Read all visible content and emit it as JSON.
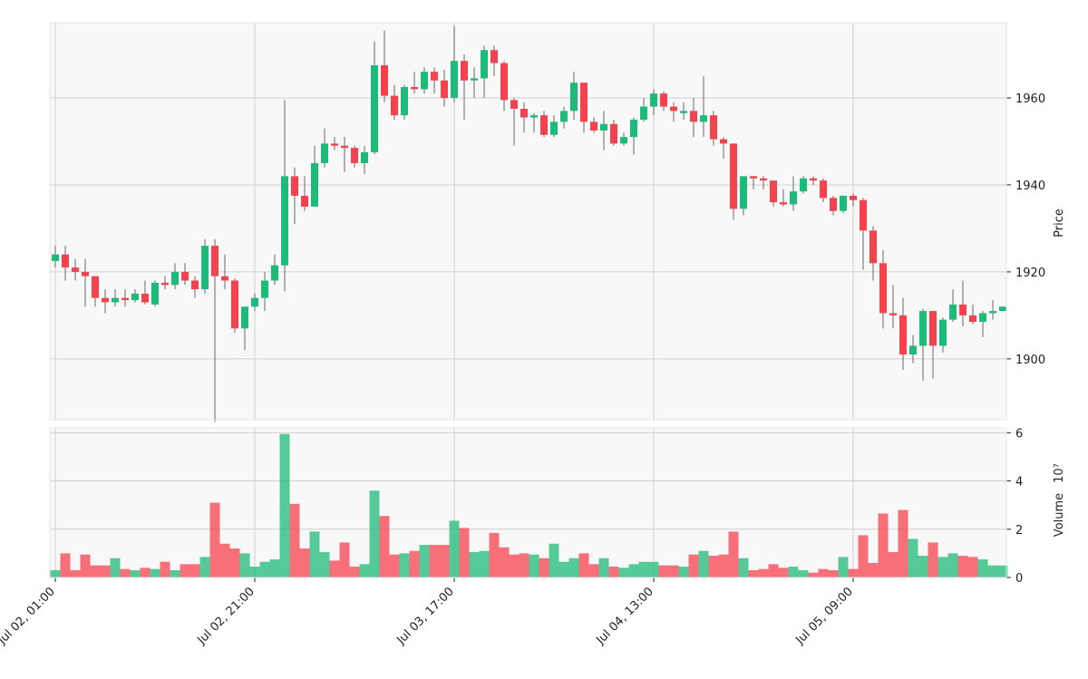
{
  "chart_data": {
    "type": "candlestick",
    "categories": [
      "Jul 02, 01:00",
      null,
      null,
      null,
      null,
      null,
      null,
      null,
      null,
      null,
      null,
      null,
      null,
      null,
      null,
      null,
      null,
      null,
      null,
      null,
      "Jul 02, 21:00",
      null,
      null,
      null,
      null,
      null,
      null,
      null,
      null,
      null,
      null,
      null,
      null,
      null,
      null,
      null,
      null,
      null,
      null,
      null,
      "Jul 03, 17:00",
      null,
      null,
      null,
      null,
      null,
      null,
      null,
      null,
      null,
      null,
      null,
      null,
      null,
      null,
      null,
      null,
      null,
      null,
      null,
      "Jul 04, 13:00",
      null,
      null,
      null,
      null,
      null,
      null,
      null,
      null,
      null,
      null,
      null,
      null,
      null,
      null,
      null,
      null,
      null,
      null,
      null,
      "Jul 05, 09:00",
      null,
      null,
      null,
      null,
      null,
      null,
      null,
      null,
      null,
      null,
      null,
      null,
      null,
      null,
      null
    ],
    "open": [
      1922.5,
      1924,
      1921,
      1920,
      1919,
      1914,
      1913,
      1914,
      1913.5,
      1915,
      1912.5,
      1917.5,
      1917,
      1920,
      1918,
      1916,
      1926,
      1919,
      1918,
      1907,
      1912,
      1914,
      1918,
      1921.5,
      1942,
      1937.5,
      1935,
      1945,
      1949.5,
      1949,
      1948.5,
      1945,
      1947.5,
      1967.5,
      1960.5,
      1956,
      1962.5,
      1962,
      1966,
      1964,
      1960,
      1968.5,
      1964,
      1964.5,
      1971,
      1968,
      1959.5,
      1957.5,
      1955.5,
      1956,
      1951.5,
      1954.5,
      1957,
      1963.5,
      1954.5,
      1952.5,
      1954,
      1949.5,
      1951,
      1955,
      1958,
      1961,
      1958,
      1956.5,
      1957,
      1954.5,
      1956,
      1950.5,
      1949.5,
      1934.5,
      1942,
      1941.5,
      1941,
      1936,
      1935.5,
      1938.5,
      1941.5,
      1941,
      1937,
      1934,
      1937.5,
      1936.5,
      1929.5,
      1922,
      1910.5,
      1910,
      1901,
      1903,
      1911,
      1903,
      1909,
      1912.5,
      1910,
      1908.5,
      1910.5,
      1911
    ],
    "high": [
      1926,
      1926,
      1923,
      1923,
      1919,
      1916,
      1916,
      1916,
      1916,
      1918,
      1918,
      1919,
      1922,
      1922,
      1919,
      1927.5,
      1927.5,
      1924,
      1918.5,
      1912,
      1915,
      1920,
      1924,
      1959.5,
      1944,
      1942,
      1949,
      1953,
      1951,
      1951,
      1949,
      1949,
      1973,
      1975.5,
      1963,
      1963,
      1966,
      1967,
      1967,
      1966.5,
      1976.5,
      1970,
      1967,
      1972,
      1972,
      1968.5,
      1960,
      1959,
      1956.5,
      1957,
      1956,
      1958,
      1966,
      1963.5,
      1955.5,
      1957,
      1955,
      1952,
      1955.5,
      1960,
      1962,
      1961.5,
      1959,
      1959,
      1960,
      1965,
      1957,
      1951,
      1949.5,
      1942,
      1942,
      1942,
      1941,
      1939,
      1942,
      1942,
      1942,
      1941.5,
      1937.5,
      1937.5,
      1938,
      1937,
      1930.5,
      1925,
      1917,
      1914,
      1905.5,
      1911.5,
      1911,
      1909.5,
      1916,
      1918,
      1912.5,
      1911,
      1913.5,
      1912
    ],
    "low": [
      1921,
      1918,
      1918,
      1912,
      1912,
      1910.5,
      1912,
      1912,
      1913,
      1912.5,
      1912,
      1916,
      1916,
      1917,
      1914,
      1915,
      1885.5,
      1916,
      1906,
      1902,
      1911,
      1911,
      1917,
      1915.5,
      1931,
      1934,
      1935,
      1944,
      1948,
      1943,
      1944,
      1942.5,
      1947,
      1959,
      1955,
      1955,
      1961,
      1961,
      1961,
      1958,
      1959,
      1955,
      1960,
      1960,
      1965,
      1957,
      1949,
      1952,
      1952,
      1951,
      1951,
      1953,
      1955,
      1952,
      1952,
      1948,
      1949,
      1949,
      1947,
      1954.5,
      1956,
      1957,
      1954.5,
      1955,
      1951,
      1951,
      1949,
      1946,
      1932,
      1933,
      1939,
      1939,
      1935,
      1935,
      1934,
      1938,
      1940,
      1936,
      1933,
      1933.5,
      1935,
      1920.5,
      1918,
      1907,
      1907,
      1897.5,
      1899,
      1895,
      1895.5,
      1901.5,
      1908.5,
      1907.5,
      1908,
      1905,
      1909,
      1911
    ],
    "close": [
      1924,
      1921,
      1920,
      1919,
      1914,
      1913,
      1914,
      1913.5,
      1915,
      1913,
      1917.5,
      1917,
      1920,
      1918,
      1916,
      1926,
      1919,
      1918,
      1907,
      1912,
      1914,
      1918,
      1921.5,
      1942,
      1937.5,
      1935,
      1945,
      1949.5,
      1949,
      1948.5,
      1945,
      1947.5,
      1967.5,
      1960.5,
      1956,
      1962.5,
      1962,
      1966,
      1964,
      1960,
      1968.5,
      1964,
      1964.5,
      1971,
      1968,
      1959.5,
      1957.5,
      1955.5,
      1956,
      1951.5,
      1954.5,
      1957,
      1963.5,
      1954.5,
      1952.5,
      1954,
      1949.5,
      1951,
      1955,
      1958,
      1961,
      1958,
      1957,
      1957,
      1954.5,
      1956,
      1950.5,
      1949.5,
      1934.5,
      1942,
      1941.5,
      1941,
      1936,
      1935.5,
      1938.5,
      1941.5,
      1941,
      1937,
      1934,
      1937.5,
      1936.5,
      1929.5,
      1922,
      1910.5,
      1910,
      1901,
      1903,
      1911,
      1903,
      1909,
      1912.5,
      1910,
      1908.5,
      1910.5,
      1911,
      1912
    ],
    "volume": [
      0.3,
      1.0,
      0.3,
      0.95,
      0.5,
      0.5,
      0.8,
      0.35,
      0.3,
      0.4,
      0.35,
      0.65,
      0.3,
      0.55,
      0.55,
      0.85,
      3.1,
      1.4,
      1.2,
      1.0,
      0.45,
      0.65,
      0.75,
      5.95,
      3.05,
      1.2,
      1.9,
      1.05,
      0.7,
      1.45,
      0.45,
      0.55,
      3.6,
      2.55,
      0.95,
      1.0,
      1.1,
      1.35,
      1.35,
      1.35,
      2.35,
      2.05,
      1.05,
      1.1,
      1.85,
      1.25,
      0.95,
      1.0,
      0.95,
      0.8,
      1.4,
      0.65,
      0.8,
      1.0,
      0.55,
      0.8,
      0.45,
      0.4,
      0.55,
      0.65,
      0.65,
      0.5,
      0.5,
      0.45,
      0.95,
      1.1,
      0.9,
      0.95,
      1.9,
      0.8,
      0.3,
      0.35,
      0.55,
      0.4,
      0.45,
      0.3,
      0.2,
      0.35,
      0.3,
      0.85,
      0.35,
      1.75,
      0.6,
      2.65,
      1.05,
      2.8,
      1.6,
      0.9,
      1.45,
      0.85,
      1.0,
      0.9,
      0.85,
      0.75,
      0.5,
      0.5
    ],
    "up_color": "#1dbb7a",
    "down_color": "#f5424f",
    "ylabel": "Price",
    "ylim": [
      1886,
      1977.3
    ],
    "yticks": [
      1900,
      1920,
      1940,
      1960
    ],
    "volume_ylabel": "Volume",
    "volume_offset": "10⁷",
    "volume_ylim": [
      0,
      6.2
    ],
    "volume_yticks": [
      0,
      2,
      4,
      6
    ],
    "grid": true
  }
}
